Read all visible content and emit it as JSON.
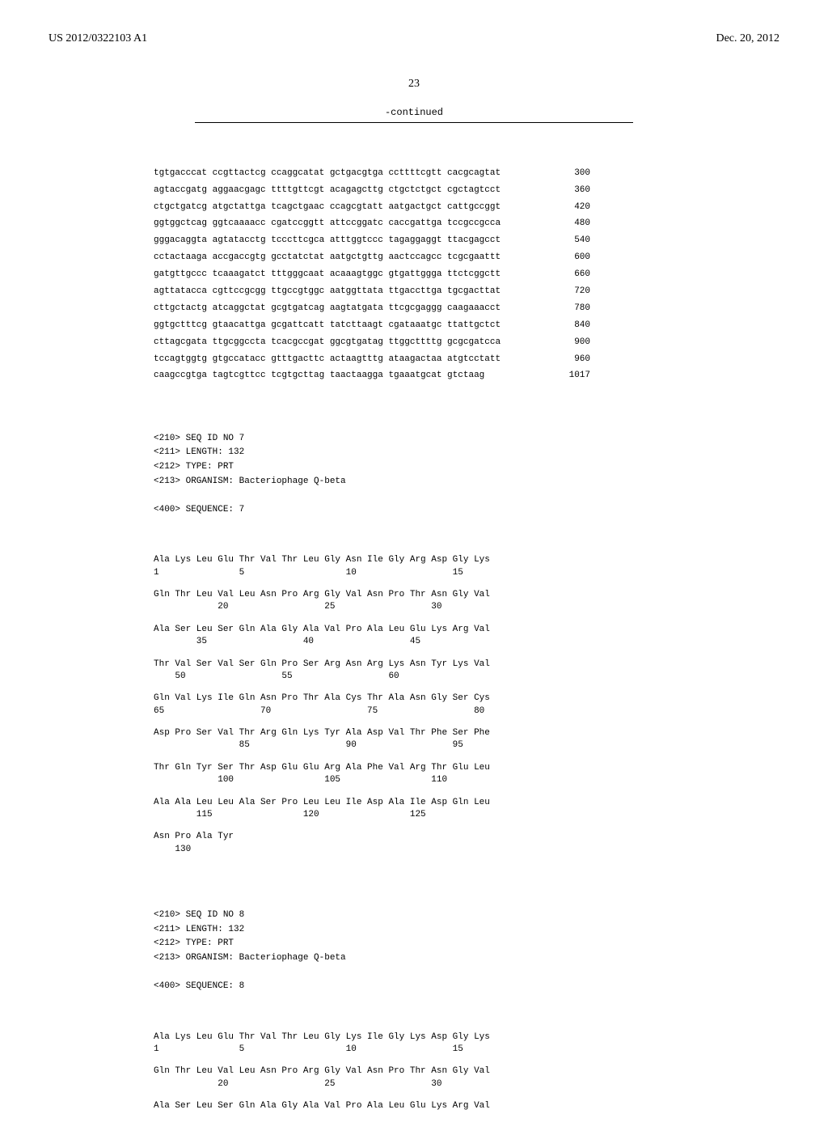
{
  "header": {
    "left": "US 2012/0322103 A1",
    "right": "Dec. 20, 2012"
  },
  "page_number": "23",
  "continued_label": "-continued",
  "dna_sequence": {
    "lines": [
      {
        "text": "tgtgacccat ccgttactcg ccaggcatat gctgacgtga ccttttcgtt cacgcagtat",
        "num": "300"
      },
      {
        "text": "agtaccgatg aggaacgagc ttttgttcgt acagagcttg ctgctctgct cgctagtcct",
        "num": "360"
      },
      {
        "text": "ctgctgatcg atgctattga tcagctgaac ccagcgtatt aatgactgct cattgccggt",
        "num": "420"
      },
      {
        "text": "ggtggctcag ggtcaaaacc cgatccggtt attccggatc caccgattga tccgccgcca",
        "num": "480"
      },
      {
        "text": "gggacaggta agtatacctg tcccttcgca atttggtccc tagaggaggt ttacgagcct",
        "num": "540"
      },
      {
        "text": "cctactaaga accgaccgtg gcctatctat aatgctgttg aactccagcc tcgcgaattt",
        "num": "600"
      },
      {
        "text": "gatgttgccc tcaaagatct tttgggcaat acaaagtggc gtgattggga ttctcggctt",
        "num": "660"
      },
      {
        "text": "agttatacca cgttccgcgg ttgccgtggc aatggttata ttgaccttga tgcgacttat",
        "num": "720"
      },
      {
        "text": "cttgctactg atcaggctat gcgtgatcag aagtatgata ttcgcgaggg caagaaacct",
        "num": "780"
      },
      {
        "text": "ggtgctttcg gtaacattga gcgattcatt tatcttaagt cgataaatgc ttattgctct",
        "num": "840"
      },
      {
        "text": "cttagcgata ttgcggccta tcacgccgat ggcgtgatag ttggcttttg gcgcgatcca",
        "num": "900"
      },
      {
        "text": "tccagtggtg gtgccatacc gtttgacttc actaagtttg ataagactaa atgtcctatt",
        "num": "960"
      },
      {
        "text": "caagccgtga tagtcgttcc tcgtgcttag taactaagga tgaaatgcat gtctaag",
        "num": "1017"
      }
    ]
  },
  "seq7_header": {
    "line1": "<210> SEQ ID NO 7",
    "line2": "<211> LENGTH: 132",
    "line3": "<212> TYPE: PRT",
    "line4": "<213> ORGANISM: Bacteriophage Q-beta",
    "line5": "<400> SEQUENCE: 7"
  },
  "seq7_protein": [
    {
      "aa": "Ala Lys Leu Glu Thr Val Thr Leu Gly Asn Ile Gly Arg Asp Gly Lys",
      "nums": "1               5                   10                  15"
    },
    {
      "aa": "Gln Thr Leu Val Leu Asn Pro Arg Gly Val Asn Pro Thr Asn Gly Val",
      "nums": "            20                  25                  30"
    },
    {
      "aa": "Ala Ser Leu Ser Gln Ala Gly Ala Val Pro Ala Leu Glu Lys Arg Val",
      "nums": "        35                  40                  45"
    },
    {
      "aa": "Thr Val Ser Val Ser Gln Pro Ser Arg Asn Arg Lys Asn Tyr Lys Val",
      "nums": "    50                  55                  60"
    },
    {
      "aa": "Gln Val Lys Ile Gln Asn Pro Thr Ala Cys Thr Ala Asn Gly Ser Cys",
      "nums": "65                  70                  75                  80"
    },
    {
      "aa": "Asp Pro Ser Val Thr Arg Gln Lys Tyr Ala Asp Val Thr Phe Ser Phe",
      "nums": "                85                  90                  95"
    },
    {
      "aa": "Thr Gln Tyr Ser Thr Asp Glu Glu Arg Ala Phe Val Arg Thr Glu Leu",
      "nums": "            100                 105                 110"
    },
    {
      "aa": "Ala Ala Leu Leu Ala Ser Pro Leu Leu Ile Asp Ala Ile Asp Gln Leu",
      "nums": "        115                 120                 125"
    },
    {
      "aa": "Asn Pro Ala Tyr",
      "nums": "    130"
    }
  ],
  "seq8_header": {
    "line1": "<210> SEQ ID NO 8",
    "line2": "<211> LENGTH: 132",
    "line3": "<212> TYPE: PRT",
    "line4": "<213> ORGANISM: Bacteriophage Q-beta",
    "line5": "<400> SEQUENCE: 8"
  },
  "seq8_protein": [
    {
      "aa": "Ala Lys Leu Glu Thr Val Thr Leu Gly Lys Ile Gly Lys Asp Gly Lys",
      "nums": "1               5                   10                  15"
    },
    {
      "aa": "Gln Thr Leu Val Leu Asn Pro Arg Gly Val Asn Pro Thr Asn Gly Val",
      "nums": "            20                  25                  30"
    },
    {
      "aa": "Ala Ser Leu Ser Gln Ala Gly Ala Val Pro Ala Leu Glu Lys Arg Val",
      "nums": ""
    }
  ]
}
